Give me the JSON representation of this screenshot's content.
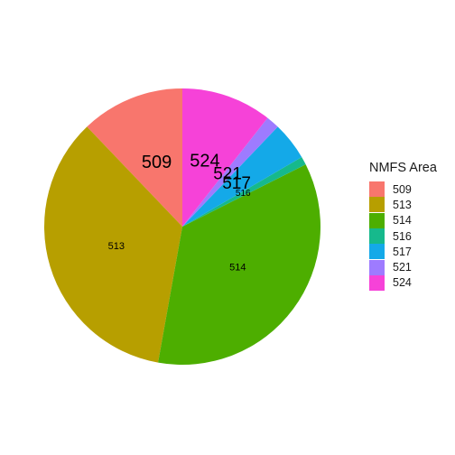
{
  "chart_data": {
    "type": "pie",
    "title": "",
    "legend": {
      "title": "NMFS Area",
      "placement": "right",
      "entries": [
        "509",
        "513",
        "514",
        "516",
        "517",
        "521",
        "524"
      ]
    },
    "categories": [
      "509",
      "513",
      "514",
      "516",
      "517",
      "521",
      "524"
    ],
    "values": [
      12.5,
      36.1,
      36.3,
      1.0,
      4.6,
      1.6,
      10.9
    ],
    "colors": [
      "#F8766D",
      "#B79F00",
      "#4DAE00",
      "#16B98C",
      "#14A9E8",
      "#9E7BFF",
      "#F642D8"
    ],
    "slice_labels": [
      "509",
      "513",
      "514",
      "516",
      "517",
      "521",
      "524"
    ],
    "start_angle_deg": 0,
    "direction": "counterclockwise"
  }
}
